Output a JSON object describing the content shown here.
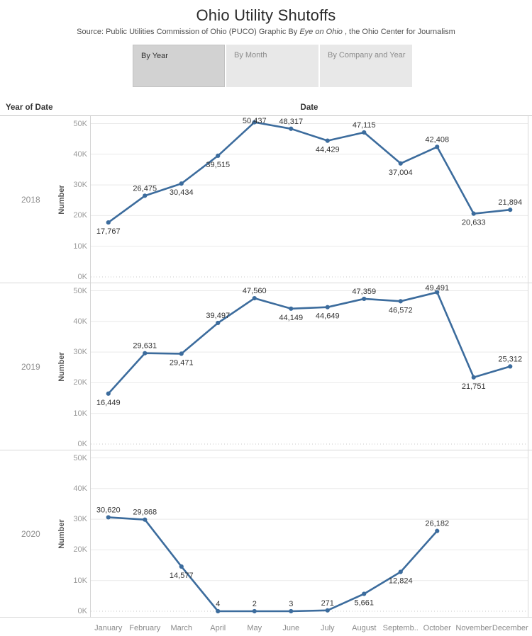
{
  "header": {
    "title": "Ohio Utility Shutoffs",
    "subtitle_prefix": "Source: Public Utilities Commission of Ohio (PUCO) Graphic By ",
    "subtitle_italic": "Eye on Ohio",
    "subtitle_suffix": " , the Ohio Center for Journalism"
  },
  "tabs": [
    {
      "label": "By Year",
      "active": true
    },
    {
      "label": "By Month",
      "active": false
    },
    {
      "label": "By Company and Year",
      "active": false
    }
  ],
  "chart_header": {
    "row_dimension": "Year of Date",
    "column_dimension": "Date"
  },
  "chart_data": {
    "type": "line",
    "title": "Ohio Utility Shutoffs",
    "xlabel": "Date",
    "ylabel": "Number",
    "ylim": [
      0,
      50000
    ],
    "grid": true,
    "legend_position": "none",
    "line_color": "#3c6c9d",
    "label_color": "#333333",
    "x": [
      "January",
      "February",
      "March",
      "April",
      "May",
      "June",
      "July",
      "August",
      "September",
      "October",
      "November",
      "December"
    ],
    "x_display": [
      "January",
      "February",
      "March",
      "April",
      "May",
      "June",
      "July",
      "August",
      "Septemb..",
      "October",
      "November",
      "December"
    ],
    "yticks": [
      {
        "value": 0,
        "label": "0K"
      },
      {
        "value": 10000,
        "label": "10K"
      },
      {
        "value": 20000,
        "label": "20K"
      },
      {
        "value": 30000,
        "label": "30K"
      },
      {
        "value": 40000,
        "label": "40K"
      },
      {
        "value": 50000,
        "label": "50K"
      }
    ],
    "series": [
      {
        "name": "2018",
        "values": [
          17767,
          26475,
          30434,
          39515,
          50437,
          48317,
          44429,
          47115,
          37004,
          42408,
          20633,
          21894
        ],
        "label_positions": [
          "below",
          "above",
          "below",
          "below",
          "above",
          "above",
          "below",
          "above",
          "below",
          "above",
          "below",
          "above"
        ]
      },
      {
        "name": "2019",
        "values": [
          16449,
          29631,
          29471,
          39497,
          47560,
          44149,
          44649,
          47359,
          46572,
          49491,
          21751,
          25312
        ],
        "label_positions": [
          "below",
          "above",
          "below",
          "above",
          "above",
          "below",
          "below",
          "above",
          "below",
          "above",
          "below",
          "above"
        ]
      },
      {
        "name": "2020",
        "values": [
          30620,
          29868,
          14577,
          4,
          2,
          3,
          271,
          5661,
          12824,
          26182,
          null,
          null
        ],
        "label_positions": [
          "above",
          "above",
          "below",
          "above",
          "above",
          "above",
          "above",
          "below",
          "below",
          "above",
          null,
          null
        ]
      }
    ]
  }
}
